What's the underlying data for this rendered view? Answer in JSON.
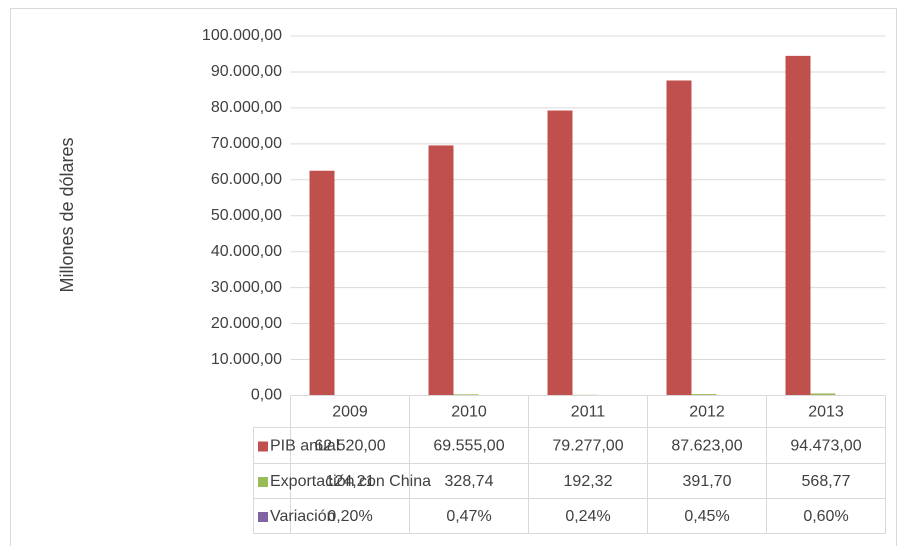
{
  "chart_data": {
    "type": "bar",
    "y_axis_label": "Millones de dólares",
    "categories": [
      "2009",
      "2010",
      "2011",
      "2012",
      "2013"
    ],
    "series": [
      {
        "name": "PIB  anual",
        "color": "#c0504d",
        "values": [
          62520,
          69555,
          79277,
          87623,
          94473
        ],
        "value_labels": [
          "62.520,00",
          "69.555,00",
          "79.277,00",
          "87.623,00",
          "94.473,00"
        ]
      },
      {
        "name": "Exportación con China",
        "color": "#9bbb59",
        "values": [
          124.21,
          328.74,
          192.32,
          391.7,
          568.77
        ],
        "value_labels": [
          "124,21",
          "328,74",
          "192,32",
          "391,70",
          "568,77"
        ]
      },
      {
        "name": "Variación",
        "color": "#8064a2",
        "values": [
          0.2,
          0.47,
          0.24,
          0.45,
          0.6
        ],
        "value_labels": [
          "0,20%",
          "0,47%",
          "0,24%",
          "0,45%",
          "0,60%"
        ]
      }
    ],
    "ylim": [
      0,
      100000
    ],
    "yticks": [
      {
        "value": 0,
        "label": "0,00"
      },
      {
        "value": 10000,
        "label": "10.000,00"
      },
      {
        "value": 20000,
        "label": "20.000,00"
      },
      {
        "value": 30000,
        "label": "30.000,00"
      },
      {
        "value": 40000,
        "label": "40.000,00"
      },
      {
        "value": 50000,
        "label": "50.000,00"
      },
      {
        "value": 60000,
        "label": "60.000,00"
      },
      {
        "value": 70000,
        "label": "70.000,00"
      },
      {
        "value": 80000,
        "label": "80.000,00"
      },
      {
        "value": 90000,
        "label": "90.000,00"
      },
      {
        "value": 100000,
        "label": "100.000,00"
      }
    ],
    "grid": true
  }
}
